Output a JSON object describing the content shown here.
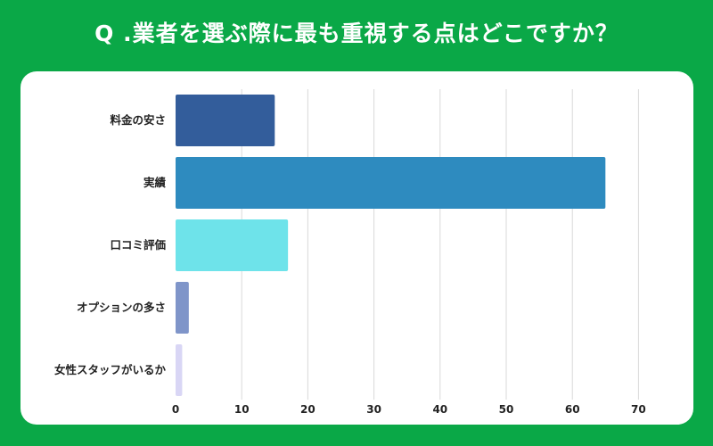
{
  "title": "Q .業者を選ぶ際に最も重視する点はどこですか？",
  "chart_data": {
    "type": "bar",
    "orientation": "horizontal",
    "categories": [
      "料金の安さ",
      "実績",
      "口コミ評価",
      "オプションの多さ",
      "女性スタッフがいるか"
    ],
    "values": [
      15,
      65,
      17,
      2,
      1
    ],
    "colors": [
      "#335d9b",
      "#2e8bbf",
      "#6ee3ea",
      "#7f95c9",
      "#d9d6f5"
    ],
    "xlim": [
      0,
      70
    ],
    "xticks": [
      0,
      10,
      20,
      30,
      40,
      50,
      60,
      70
    ],
    "grid": true,
    "gridColor": "#d9d9d9"
  }
}
